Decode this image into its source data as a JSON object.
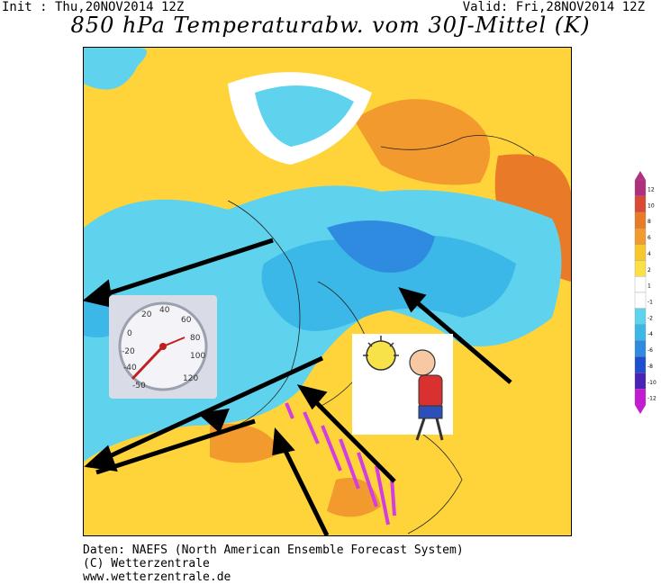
{
  "header": {
    "init": "Init : Thu,20NOV2014 12Z",
    "valid": "Valid: Fri,28NOV2014 12Z",
    "title": "850 hPa Temperaturabw. vom 30J-Mittel (K)"
  },
  "legend": {
    "levels": [
      "12",
      "10",
      "8",
      "6",
      "4",
      "2",
      "1",
      "-1",
      "-2",
      "-4",
      "-6",
      "-8",
      "-10",
      "-12"
    ],
    "colors": [
      "#b0307d",
      "#d84a35",
      "#e87a28",
      "#f39a2e",
      "#f7c72d",
      "#fde045",
      "#ffffff",
      "#ffffff",
      "#5fd3ee",
      "#3bb8e8",
      "#2f8be0",
      "#1d4fd0",
      "#4b22b8",
      "#c21bd1"
    ]
  },
  "footer": {
    "line1": "Daten: NAEFS (North American Ensemble Forecast System)",
    "line2": "(C) Wetterzentrale",
    "line3": "www.wetterzentrale.de"
  },
  "thermometer": {
    "scale": [
      "20",
      "40",
      "60",
      "80",
      "100",
      "120",
      "0",
      "-20",
      "-40",
      "-50"
    ],
    "needle_value": -40
  }
}
